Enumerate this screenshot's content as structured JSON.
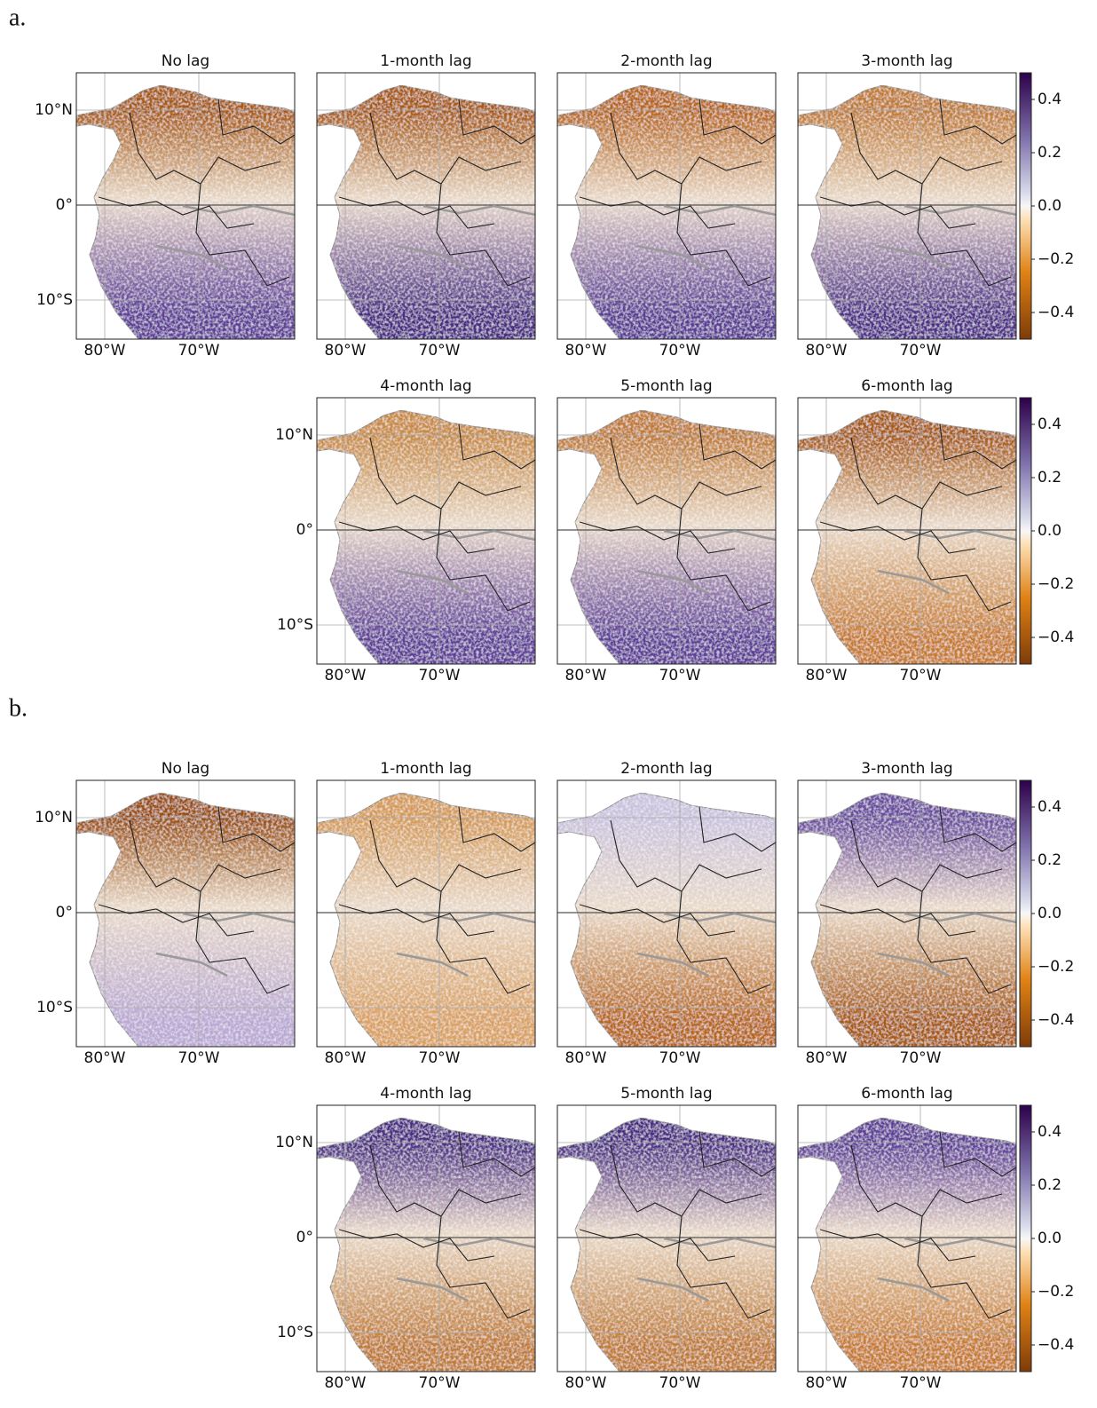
{
  "figure_a": {
    "label": "a.",
    "titles": [
      "No lag",
      "1-month lag",
      "2-month lag",
      "3-month lag",
      "4-month lag",
      "5-month lag",
      "6-month lag"
    ]
  },
  "figure_b": {
    "label": "b.",
    "titles": [
      "No lag",
      "1-month lag",
      "2-month lag",
      "3-month lag",
      "4-month lag",
      "5-month lag",
      "6-month lag"
    ]
  },
  "lat_labels": [
    "10°N",
    "0°",
    "10°S"
  ],
  "lon_labels": [
    "80°W",
    "70°W"
  ],
  "colorbar": {
    "lim": [
      -0.5,
      0.5
    ],
    "ticks": [
      0.4,
      0.2,
      {
        "value": 0,
        "label": "0.0"
      },
      {
        "value": -0.2,
        "label": "−0.2"
      },
      {
        "value": -0.4,
        "label": "−0.4"
      }
    ]
  }
}
